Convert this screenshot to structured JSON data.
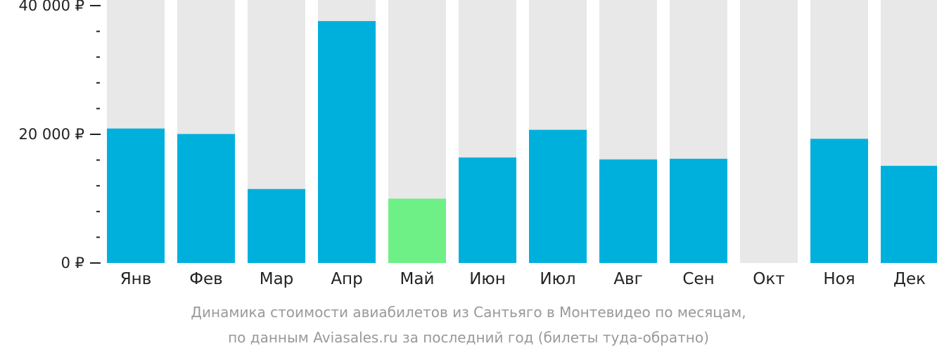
{
  "chart_data": {
    "type": "bar",
    "categories": [
      "Янв",
      "Фев",
      "Мар",
      "Апр",
      "Май",
      "Июн",
      "Июл",
      "Авг",
      "Сен",
      "Окт",
      "Ноя",
      "Дек"
    ],
    "values": [
      20900,
      20050,
      11500,
      37600,
      10000,
      16400,
      20700,
      16100,
      16200,
      null,
      19300,
      15100
    ],
    "highlight_index": 4,
    "ylim": [
      0,
      40000
    ],
    "y_ticks": [
      {
        "value": 0,
        "label": "0 ₽"
      },
      {
        "value": 20000,
        "label": "20 000 ₽"
      },
      {
        "value": 40000,
        "label": "40 000 ₽"
      }
    ],
    "minor_tick_step": 4000,
    "colors": {
      "bar": "#00b0dc",
      "highlight": "#6ef086",
      "background_column": "#e8e8e8",
      "axis": "#222222"
    },
    "caption_line1": "Динамика стоимости авиабилетов из Сантьяго в Монтевидео по месяцам,",
    "caption_line2": "по данным Aviasales.ru за последний год (билеты туда-обратно)"
  }
}
